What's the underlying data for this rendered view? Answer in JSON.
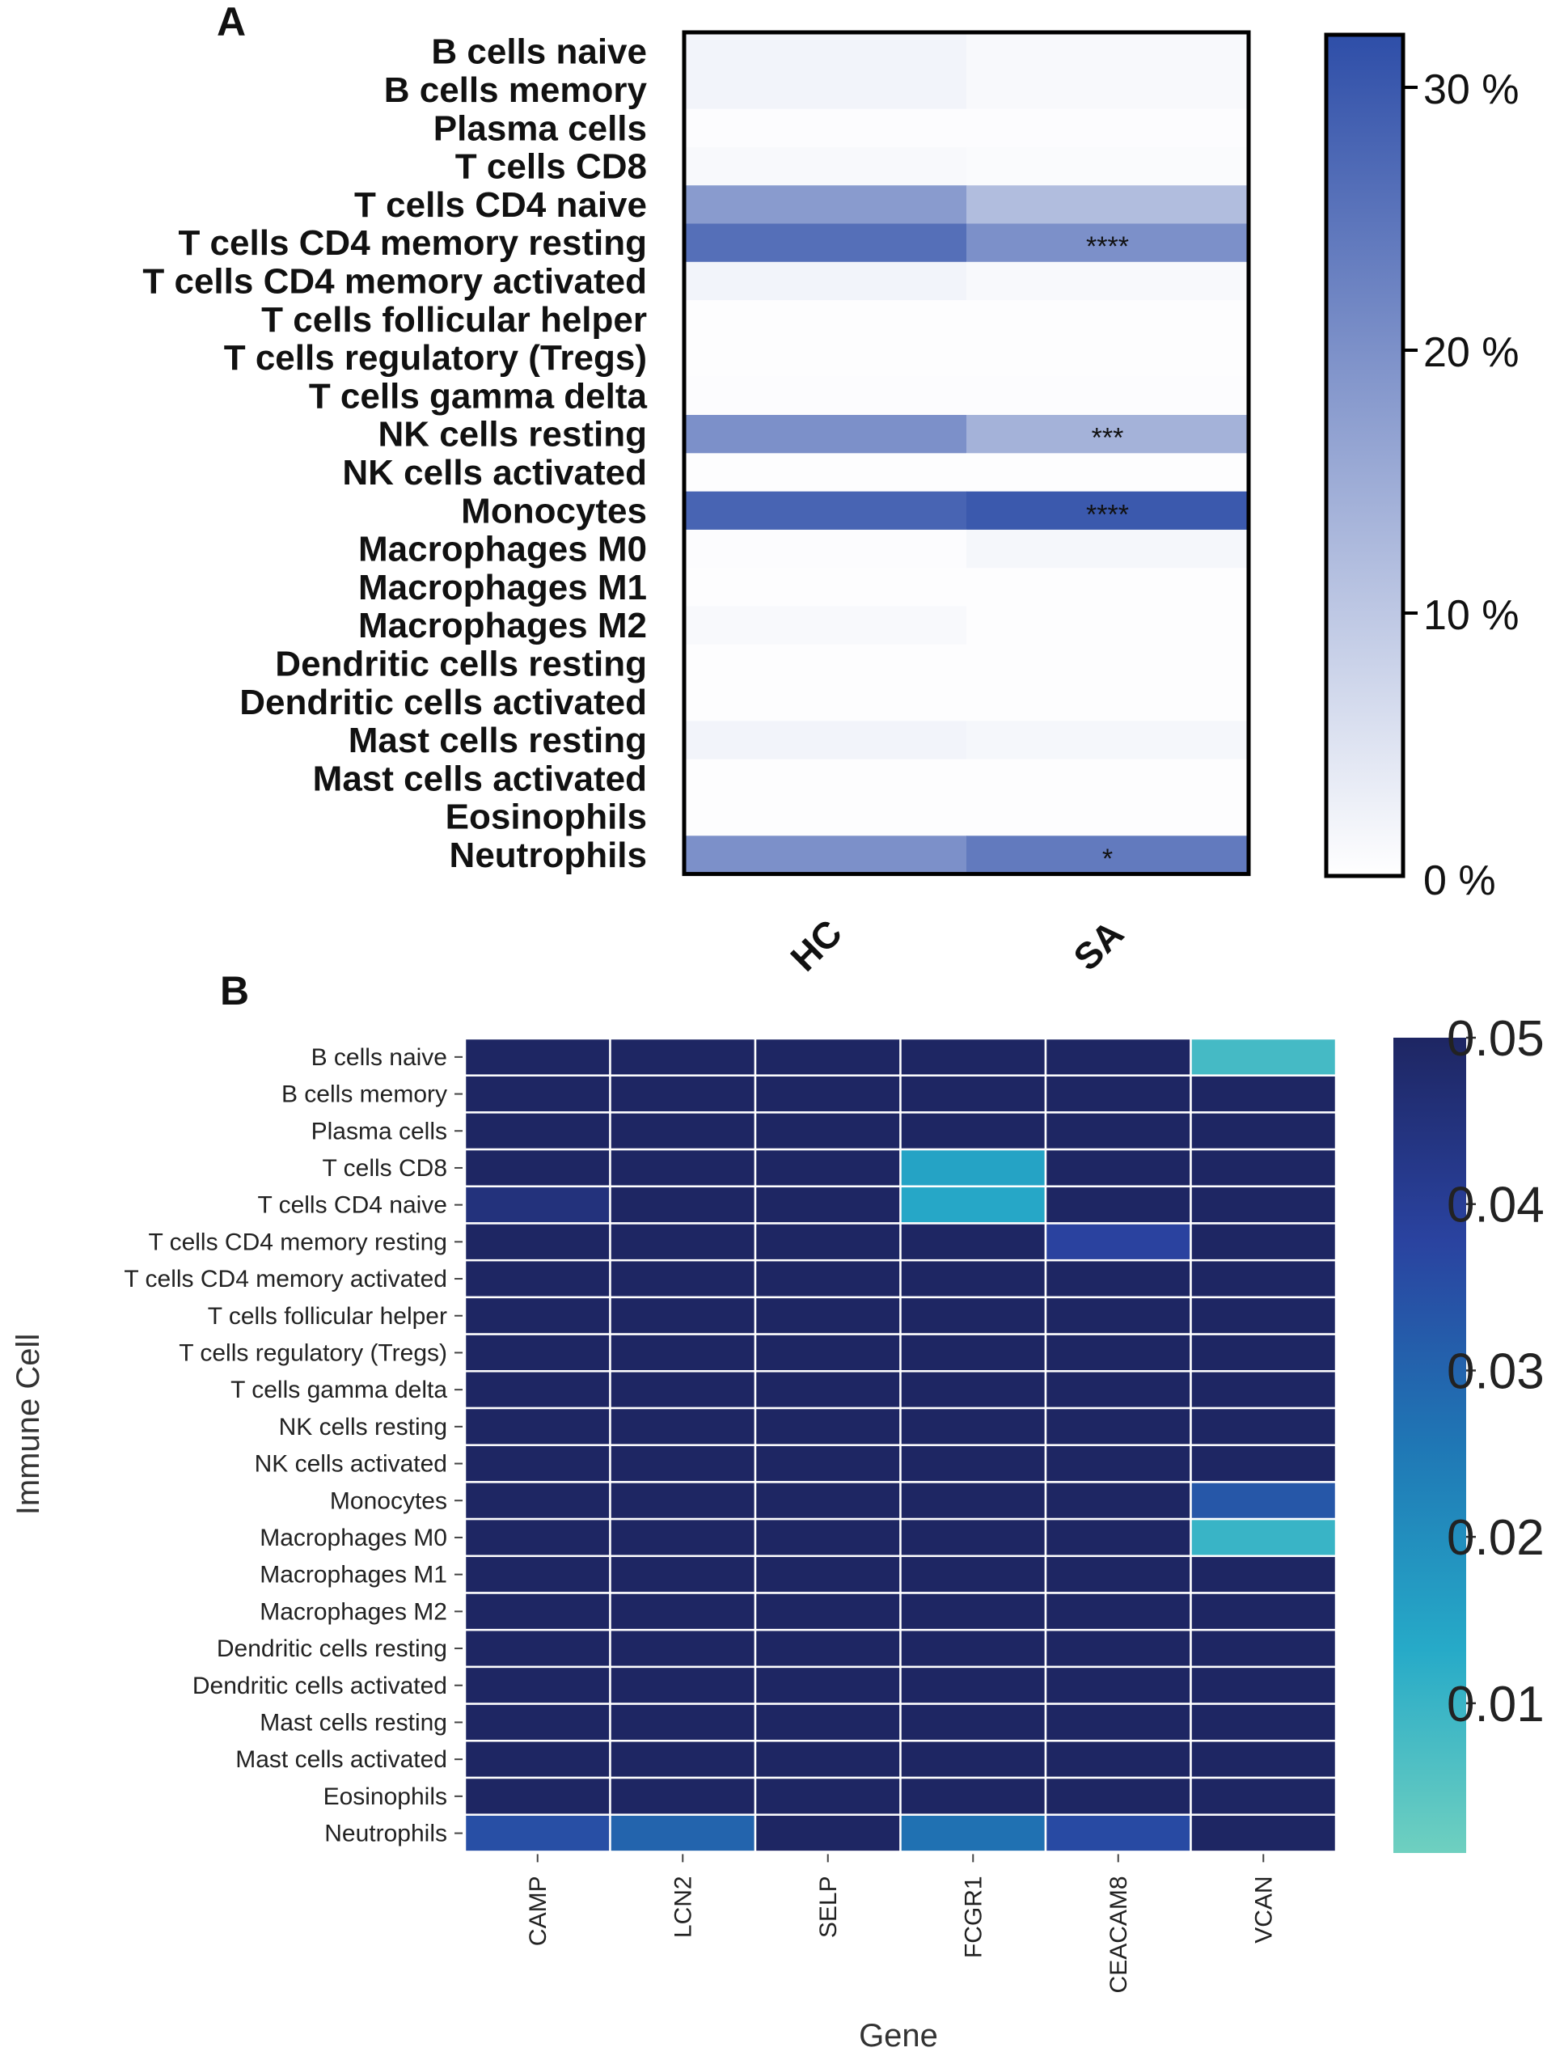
{
  "chart_data": [
    {
      "type": "heatmap",
      "panel": "A",
      "rows": [
        "B cells naive",
        "B cells memory",
        "Plasma cells",
        "T cells CD8",
        "T cells CD4 naive",
        "T cells CD4 memory resting",
        "T cells CD4 memory activated",
        "T cells follicular helper",
        "T cells regulatory (Tregs)",
        "T cells gamma delta",
        "NK cells resting",
        "NK cells activated",
        "Monocytes",
        "Macrophages M0",
        "Macrophages M1",
        "Macrophages M2",
        "Dendritic cells resting",
        "Dendritic cells activated",
        "Mast cells resting",
        "Mast cells activated",
        "Eosinophils",
        "Neutrophils"
      ],
      "columns": [
        "HC",
        "SA"
      ],
      "values": [
        [
          2,
          1
        ],
        [
          2,
          1
        ],
        [
          0.5,
          0.5
        ],
        [
          1,
          0.8
        ],
        [
          18,
          12
        ],
        [
          26,
          20
        ],
        [
          2,
          1
        ],
        [
          0.3,
          0.3
        ],
        [
          0.3,
          0.3
        ],
        [
          0.5,
          0.5
        ],
        [
          20,
          14
        ],
        [
          0.3,
          0.3
        ],
        [
          28,
          30
        ],
        [
          0.5,
          1.5
        ],
        [
          0.3,
          0.3
        ],
        [
          1,
          0.3
        ],
        [
          0.3,
          0.3
        ],
        [
          0.3,
          0.3
        ],
        [
          2,
          1.5
        ],
        [
          0.3,
          0.3
        ],
        [
          0.3,
          0.3
        ],
        [
          20,
          24
        ]
      ],
      "annotations": [
        {
          "row": "T cells CD4 memory resting",
          "column": "SA",
          "text": "****"
        },
        {
          "row": "NK cells resting",
          "column": "SA",
          "text": "***"
        },
        {
          "row": "Monocytes",
          "column": "SA",
          "text": "****"
        },
        {
          "row": "Neutrophils",
          "column": "SA",
          "text": "*"
        }
      ],
      "colorbar": {
        "min": 0,
        "max": 32,
        "ticks": [
          0,
          10,
          20,
          30
        ],
        "tick_labels": [
          "0 %",
          "10 %",
          "20 %",
          "30 %"
        ],
        "color_low": "#ffffff",
        "color_high": "#2e4ea8"
      }
    },
    {
      "type": "heatmap",
      "panel": "B",
      "xlabel": "Gene",
      "ylabel": "Immune Cell",
      "rows": [
        "B cells naive",
        "B cells memory",
        "Plasma cells",
        "T cells CD8",
        "T cells CD4 naive",
        "T cells CD4 memory resting",
        "T cells CD4 memory activated",
        "T cells follicular helper",
        "T cells regulatory (Tregs)",
        "T cells gamma delta",
        "NK cells resting",
        "NK cells activated",
        "Monocytes",
        "Macrophages M0",
        "Macrophages M1",
        "Macrophages M2",
        "Dendritic cells resting",
        "Dendritic cells activated",
        "Mast cells resting",
        "Mast cells activated",
        "Eosinophils",
        "Neutrophils"
      ],
      "columns": [
        "CAMP",
        "LCN2",
        "SELP",
        "FCGR1",
        "CEACAM8",
        "VCAN"
      ],
      "values": [
        [
          0.05,
          0.05,
          0.05,
          0.05,
          0.05,
          0.008
        ],
        [
          0.05,
          0.05,
          0.05,
          0.05,
          0.05,
          0.05
        ],
        [
          0.05,
          0.05,
          0.05,
          0.05,
          0.05,
          0.05
        ],
        [
          0.05,
          0.05,
          0.05,
          0.015,
          0.05,
          0.05
        ],
        [
          0.045,
          0.05,
          0.05,
          0.014,
          0.05,
          0.05
        ],
        [
          0.05,
          0.05,
          0.05,
          0.05,
          0.038,
          0.05
        ],
        [
          0.05,
          0.05,
          0.05,
          0.05,
          0.05,
          0.05
        ],
        [
          0.05,
          0.05,
          0.05,
          0.05,
          0.05,
          0.05
        ],
        [
          0.05,
          0.05,
          0.05,
          0.05,
          0.05,
          0.05
        ],
        [
          0.05,
          0.05,
          0.05,
          0.05,
          0.05,
          0.05
        ],
        [
          0.05,
          0.05,
          0.05,
          0.05,
          0.05,
          0.05
        ],
        [
          0.05,
          0.05,
          0.05,
          0.05,
          0.05,
          0.05
        ],
        [
          0.05,
          0.05,
          0.05,
          0.05,
          0.05,
          0.033
        ],
        [
          0.05,
          0.05,
          0.05,
          0.05,
          0.05,
          0.01
        ],
        [
          0.05,
          0.05,
          0.05,
          0.05,
          0.05,
          0.05
        ],
        [
          0.05,
          0.05,
          0.05,
          0.05,
          0.05,
          0.05
        ],
        [
          0.05,
          0.05,
          0.05,
          0.05,
          0.05,
          0.05
        ],
        [
          0.05,
          0.05,
          0.05,
          0.05,
          0.05,
          0.05
        ],
        [
          0.05,
          0.05,
          0.05,
          0.05,
          0.05,
          0.05
        ],
        [
          0.05,
          0.05,
          0.05,
          0.05,
          0.05,
          0.05
        ],
        [
          0.05,
          0.05,
          0.05,
          0.05,
          0.05,
          0.05
        ],
        [
          0.035,
          0.03,
          0.05,
          0.027,
          0.036,
          0.05
        ]
      ],
      "colorbar": {
        "min": 0.001,
        "max": 0.05,
        "ticks": [
          0.01,
          0.02,
          0.03,
          0.04,
          0.05
        ],
        "tick_labels": [
          "0.01",
          "0.02",
          "0.03",
          "0.04",
          "0.05"
        ],
        "colors": [
          "#6fd0c0",
          "#26aac8",
          "#1f77b5",
          "#2a43a0",
          "#1e2663"
        ]
      }
    }
  ]
}
